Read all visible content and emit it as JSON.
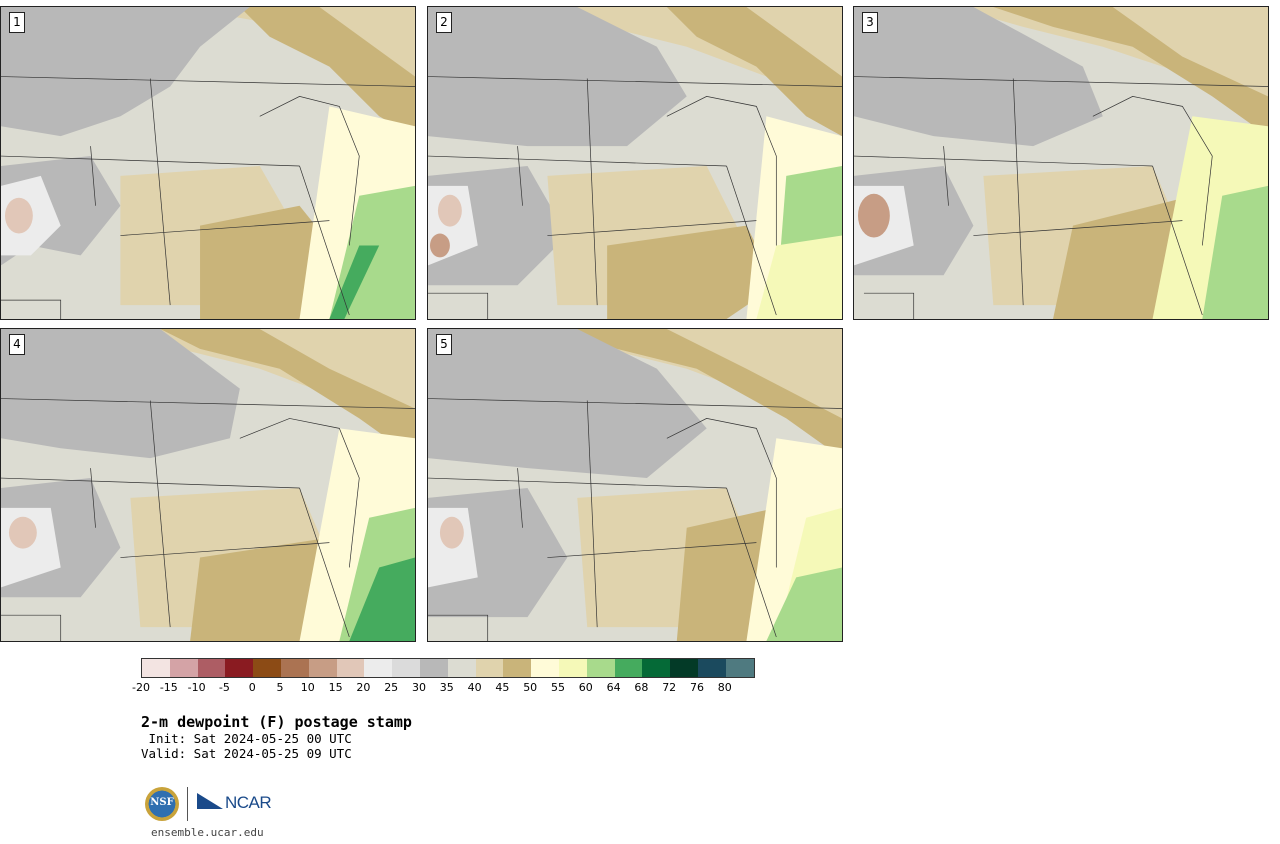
{
  "panels": [
    {
      "label": "1"
    },
    {
      "label": "2"
    },
    {
      "label": "3"
    },
    {
      "label": "4"
    },
    {
      "label": "5"
    }
  ],
  "colorbar": {
    "colors": [
      "#f3e4e2",
      "#d4a3a6",
      "#ad5d64",
      "#8a1b21",
      "#8c4b15",
      "#ab7352",
      "#c79d85",
      "#e1c7b8",
      "#ececec",
      "#dbdbdb",
      "#b8b8b8",
      "#dcdcd2",
      "#e0d3ad",
      "#c9b47a",
      "#fffbd8",
      "#f5f9b8",
      "#a8da8c",
      "#45ab5e",
      "#056a37",
      "#033a27",
      "#1b4a5e",
      "#4f7a80"
    ],
    "ticks": [
      "-20",
      "-15",
      "-10",
      "-5",
      "0",
      "5",
      "10",
      "15",
      "20",
      "25",
      "30",
      "35",
      "40",
      "45",
      "50",
      "55",
      "60",
      "64",
      "68",
      "72",
      "76",
      "80"
    ]
  },
  "title": "2-m dewpoint (F) postage stamp",
  "init_line": " Init: Sat 2024-05-25 00 UTC",
  "valid_line": "Valid: Sat 2024-05-25 09 UTC",
  "logo": {
    "nsf": "NSF",
    "ncar": "NCAR"
  },
  "url": "ensemble.ucar.edu"
}
